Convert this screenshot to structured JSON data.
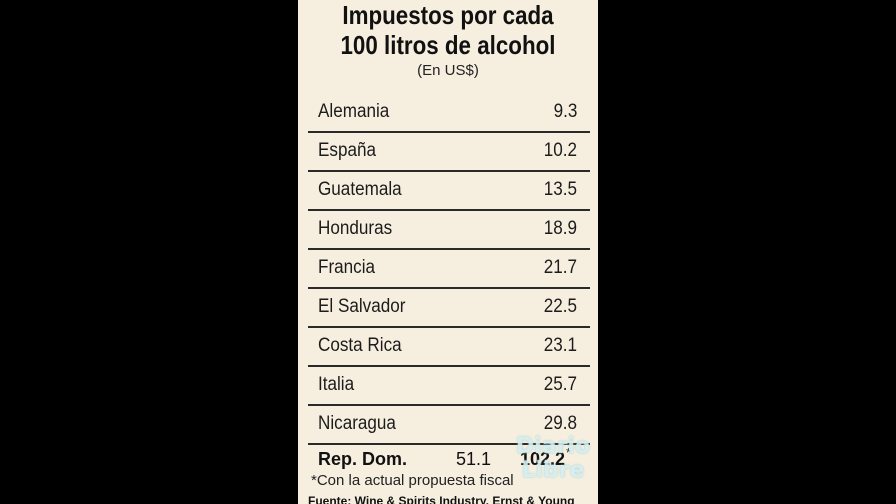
{
  "chart_data": {
    "type": "table",
    "title_line1": "Impuestos por cada",
    "title_line2": "100 litros de alcohol",
    "subtitle": "(En US$)",
    "categories": [
      "Alemania",
      "España",
      "Guatemala",
      "Honduras",
      "Francia",
      "El Salvador",
      "Costa Rica",
      "Italia",
      "Nicaragua"
    ],
    "values": [
      9.3,
      10.2,
      13.5,
      18.9,
      21.7,
      22.5,
      23.1,
      25.7,
      29.8
    ],
    "rep_dom": {
      "label": "Rep. Dom.",
      "current": "51.1",
      "proposed": "102.2",
      "marker": "*"
    },
    "footnote": "*Con la actual propuesta fiscal",
    "source": "Fuente: Wine & Spirits Industry, Ernst & Young"
  },
  "watermark": {
    "line1": "Diario",
    "line2": "Libre"
  },
  "colors": {
    "background": "#000000",
    "panel": "#f6efe0",
    "text": "#1c1c1c"
  }
}
